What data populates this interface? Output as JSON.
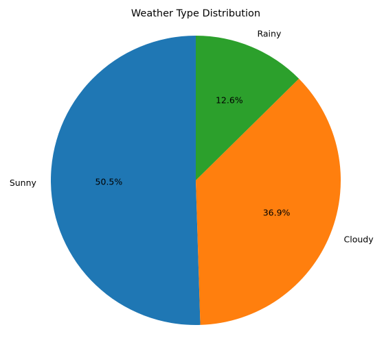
{
  "chart_data": {
    "type": "pie",
    "title": "Weather Type Distribution",
    "categories": [
      "Sunny",
      "Cloudy",
      "Rainy"
    ],
    "values": [
      50.5,
      36.9,
      12.6
    ],
    "percent_labels": [
      "50.5%",
      "36.9%",
      "12.6%"
    ],
    "colors": [
      "#1f77b4",
      "#ff7f0e",
      "#2ca02c"
    ],
    "start_angle_deg": 90,
    "direction": "counterclockwise",
    "legend": "none"
  }
}
